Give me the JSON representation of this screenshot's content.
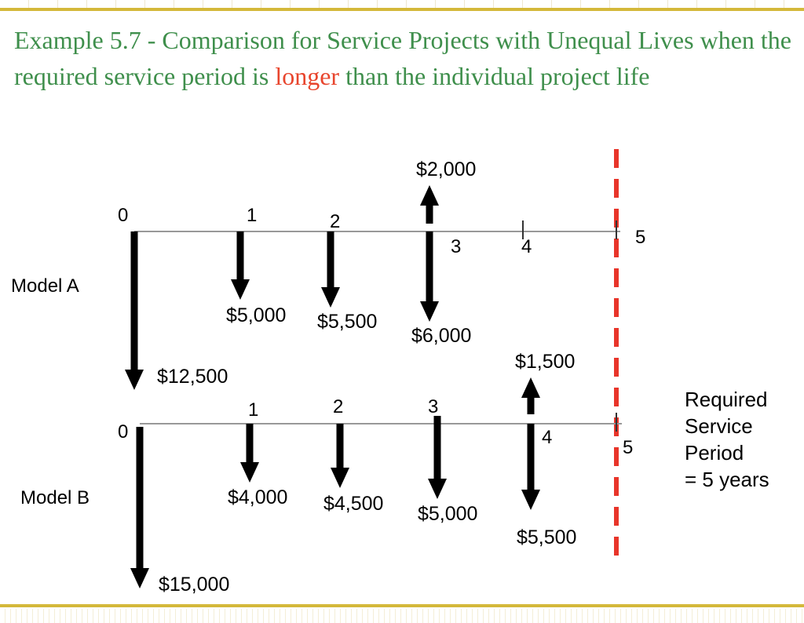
{
  "slide": {
    "title_part1": "Example 5.7 - Comparison for Service Projects with Unequal Lives when the required service period is ",
    "title_highlight": "longer",
    "title_part2": " than the individual project life",
    "title_color": "#3f8f4c",
    "highlight_color": "#e8452d",
    "rule_color": "#d4b83a"
  },
  "diagram": {
    "required_line_color": "#e8352a",
    "axis_color": "#999999",
    "arrow_color": "#000000",
    "required_period_label": [
      "Required",
      "Service",
      "Period",
      "= 5 years"
    ],
    "models": [
      {
        "name": "Model A",
        "periods": [
          "0",
          "1",
          "2",
          "3",
          "4",
          "5"
        ],
        "cash_flows": [
          {
            "period": 0,
            "direction": "down",
            "amount": 12500,
            "label": "$12,500"
          },
          {
            "period": 1,
            "direction": "down",
            "amount": 5000,
            "label": "$5,000"
          },
          {
            "period": 2,
            "direction": "down",
            "amount": 5500,
            "label": "$5,500"
          },
          {
            "period": 3,
            "direction": "down",
            "amount": 6000,
            "label": "$6,000"
          },
          {
            "period": 3,
            "direction": "up",
            "amount": 2000,
            "label": "$2,000"
          }
        ]
      },
      {
        "name": "Model B",
        "periods": [
          "0",
          "1",
          "2",
          "3",
          "4",
          "5"
        ],
        "cash_flows": [
          {
            "period": 0,
            "direction": "down",
            "amount": 15000,
            "label": "$15,000"
          },
          {
            "period": 1,
            "direction": "down",
            "amount": 4000,
            "label": "$4,000"
          },
          {
            "period": 2,
            "direction": "down",
            "amount": 4500,
            "label": "$4,500"
          },
          {
            "period": 3,
            "direction": "down",
            "amount": 5000,
            "label": "$5,000"
          },
          {
            "period": 4,
            "direction": "down",
            "amount": 5500,
            "label": "$5,500"
          },
          {
            "period": 4,
            "direction": "up",
            "amount": 1500,
            "label": "$1,500"
          }
        ]
      }
    ]
  }
}
